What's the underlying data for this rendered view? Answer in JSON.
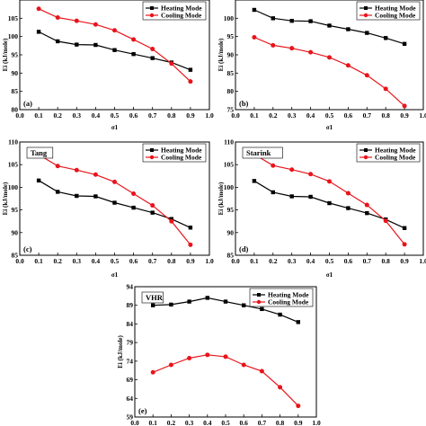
{
  "chart_data": [
    {
      "type": "line",
      "panel_label": "(a)",
      "name_label": "",
      "xlabel": "σ1",
      "ylabel": "Ei (kJ/mole)",
      "xlim": [
        0.0,
        1.0
      ],
      "ylim": [
        80,
        110
      ],
      "xticks": [
        "0.0",
        "0.1",
        "0.2",
        "0.3",
        "0.4",
        "0.5",
        "0.6",
        "0.7",
        "0.8",
        "0.9",
        "1.0"
      ],
      "yticks": [
        "80",
        "85",
        "90",
        "95",
        "100",
        "105"
      ],
      "legend_position": "top-right",
      "x": [
        0.1,
        0.2,
        0.3,
        0.4,
        0.5,
        0.6,
        0.7,
        0.8,
        0.9
      ],
      "series": [
        {
          "name": "Heating Mode",
          "color": "#000000",
          "marker": "square",
          "values": [
            101.3,
            98.7,
            97.8,
            97.7,
            96.3,
            95.2,
            94.1,
            92.9,
            90.9
          ]
        },
        {
          "name": "Cooling Mode",
          "color": "#e8141b",
          "marker": "circle",
          "values": [
            107.6,
            105.2,
            104.3,
            103.3,
            101.7,
            99.2,
            96.6,
            92.6,
            87.7
          ]
        }
      ]
    },
    {
      "type": "line",
      "panel_label": "(b)",
      "name_label": "",
      "xlabel": "σ1",
      "ylabel": "Ei (kJ/mole)",
      "xlim": [
        0.0,
        1.0
      ],
      "ylim": [
        75,
        105
      ],
      "xticks": [
        "0.0",
        "0.1",
        "0.2",
        "0.3",
        "0.4",
        "0.5",
        "0.6",
        "0.7",
        "0.8",
        "0.9",
        "1.0"
      ],
      "yticks": [
        "75",
        "80",
        "85",
        "90",
        "95",
        "100"
      ],
      "legend_position": "top-right",
      "x": [
        0.1,
        0.2,
        0.3,
        0.4,
        0.5,
        0.6,
        0.7,
        0.8,
        0.9
      ],
      "series": [
        {
          "name": "Heating Mode",
          "color": "#000000",
          "marker": "square",
          "values": [
            102.3,
            100.0,
            99.3,
            99.2,
            98.0,
            97.0,
            96.0,
            94.6,
            93.0
          ]
        },
        {
          "name": "Cooling Mode",
          "color": "#e8141b",
          "marker": "circle",
          "values": [
            94.8,
            92.6,
            91.8,
            90.7,
            89.3,
            87.1,
            84.4,
            80.7,
            76.0
          ]
        }
      ]
    },
    {
      "type": "line",
      "panel_label": "(c)",
      "name_label": "Tang",
      "xlabel": "σ1",
      "ylabel": "Ei (kJ/mole)",
      "xlim": [
        0.0,
        1.0
      ],
      "ylim": [
        85,
        110
      ],
      "xticks": [
        "0.0",
        "0.1",
        "0.2",
        "0.3",
        "0.4",
        "0.5",
        "0.6",
        "0.7",
        "0.8",
        "0.9",
        "1.0"
      ],
      "yticks": [
        "85",
        "90",
        "95",
        "100",
        "105",
        "110"
      ],
      "legend_position": "top-right",
      "x": [
        0.1,
        0.2,
        0.3,
        0.4,
        0.5,
        0.6,
        0.7,
        0.8,
        0.9
      ],
      "series": [
        {
          "name": "Heating Mode",
          "color": "#000000",
          "marker": "square",
          "values": [
            101.5,
            99.0,
            98.1,
            98.0,
            96.6,
            95.5,
            94.4,
            93.0,
            91.1
          ]
        },
        {
          "name": "Cooling Mode",
          "color": "#e8141b",
          "marker": "circle",
          "values": [
            107.2,
            104.7,
            103.8,
            102.8,
            101.2,
            98.6,
            96.0,
            92.5,
            87.3
          ]
        }
      ]
    },
    {
      "type": "line",
      "panel_label": "(d)",
      "name_label": "Starink",
      "xlabel": "σ1",
      "ylabel": "Ei (kJ/mole)",
      "xlim": [
        0.0,
        1.0
      ],
      "ylim": [
        85,
        110
      ],
      "xticks": [
        "0.0",
        "0.1",
        "0.2",
        "0.3",
        "0.4",
        "0.5",
        "0.6",
        "0.7",
        "0.8",
        "0.9",
        "1.0"
      ],
      "yticks": [
        "85",
        "90",
        "95",
        "100",
        "105",
        "110"
      ],
      "legend_position": "top-right",
      "x": [
        0.1,
        0.2,
        0.3,
        0.4,
        0.5,
        0.6,
        0.7,
        0.8,
        0.9
      ],
      "series": [
        {
          "name": "Heating Mode",
          "color": "#000000",
          "marker": "square",
          "values": [
            101.4,
            98.9,
            98.0,
            97.9,
            96.5,
            95.4,
            94.3,
            92.9,
            91.0
          ]
        },
        {
          "name": "Cooling Mode",
          "color": "#e8141b",
          "marker": "circle",
          "values": [
            107.3,
            104.8,
            103.9,
            102.9,
            101.3,
            98.7,
            96.1,
            92.6,
            87.4
          ]
        }
      ]
    },
    {
      "type": "line",
      "panel_label": "(e)",
      "name_label": "VHR",
      "xlabel": "",
      "ylabel": "Ei (kJ/mole)",
      "xlim": [
        0.0,
        1.0
      ],
      "ylim": [
        59,
        94
      ],
      "xticks": [
        "0.0",
        "0.1",
        "0.2",
        "0.3",
        "0.4",
        "0.5",
        "0.6",
        "0.7",
        "0.8",
        "0.9",
        "1.0"
      ],
      "yticks": [
        "59",
        "64",
        "69",
        "74",
        "79",
        "84",
        "89",
        "94"
      ],
      "legend_position": "top-right",
      "x": [
        0.1,
        0.2,
        0.3,
        0.4,
        0.5,
        0.6,
        0.7,
        0.8,
        0.9
      ],
      "series": [
        {
          "name": "Heating Mode",
          "color": "#000000",
          "marker": "square",
          "values": [
            89.0,
            89.2,
            90.0,
            91.0,
            90.0,
            89.0,
            88.0,
            86.5,
            84.5
          ]
        },
        {
          "name": "Cooling Mode",
          "color": "#e8141b",
          "marker": "circle",
          "values": [
            71.0,
            73.0,
            74.8,
            75.7,
            75.2,
            73.0,
            71.3,
            67.0,
            62.0
          ]
        }
      ]
    }
  ]
}
